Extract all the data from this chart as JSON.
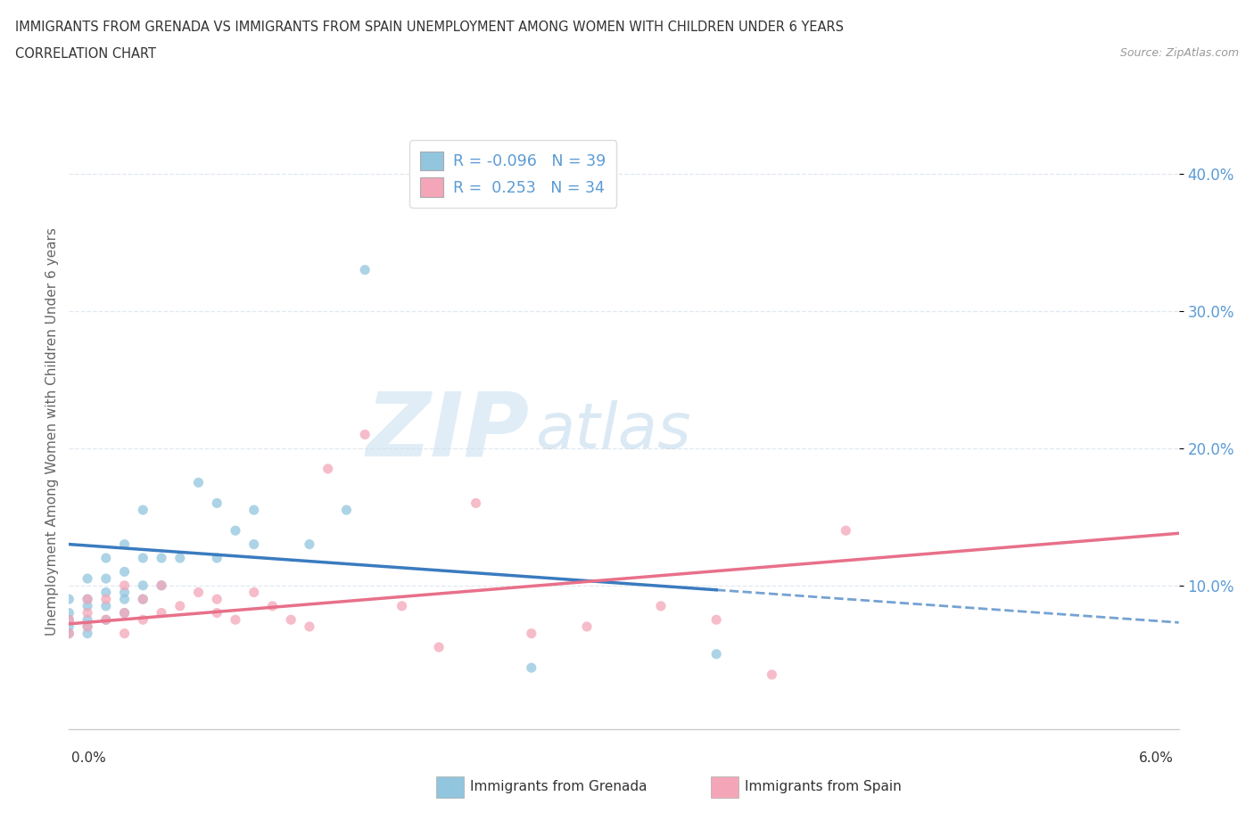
{
  "title_line1": "IMMIGRANTS FROM GRENADA VS IMMIGRANTS FROM SPAIN UNEMPLOYMENT AMONG WOMEN WITH CHILDREN UNDER 6 YEARS",
  "title_line2": "CORRELATION CHART",
  "source": "Source: ZipAtlas.com",
  "ylabel": "Unemployment Among Women with Children Under 6 years",
  "xlim": [
    0.0,
    0.06
  ],
  "ylim": [
    -0.005,
    0.43
  ],
  "grenada_R": -0.096,
  "grenada_N": 39,
  "spain_R": 0.253,
  "spain_N": 34,
  "grenada_color": "#92c5de",
  "spain_color": "#f4a6b8",
  "grenada_line_color": "#3a7bbf",
  "spain_line_color": "#e8708a",
  "watermark_zip": "ZIP",
  "watermark_atlas": "atlas",
  "grenada_x": [
    0.0,
    0.0,
    0.0,
    0.0,
    0.0,
    0.001,
    0.001,
    0.001,
    0.001,
    0.001,
    0.001,
    0.002,
    0.002,
    0.002,
    0.002,
    0.002,
    0.003,
    0.003,
    0.003,
    0.003,
    0.003,
    0.004,
    0.004,
    0.004,
    0.004,
    0.005,
    0.005,
    0.006,
    0.007,
    0.008,
    0.008,
    0.009,
    0.01,
    0.01,
    0.013,
    0.015,
    0.016,
    0.025,
    0.035
  ],
  "grenada_y": [
    0.065,
    0.07,
    0.075,
    0.08,
    0.09,
    0.065,
    0.07,
    0.075,
    0.085,
    0.09,
    0.105,
    0.075,
    0.085,
    0.095,
    0.105,
    0.12,
    0.08,
    0.09,
    0.095,
    0.11,
    0.13,
    0.09,
    0.1,
    0.12,
    0.155,
    0.1,
    0.12,
    0.12,
    0.175,
    0.12,
    0.16,
    0.14,
    0.13,
    0.155,
    0.13,
    0.155,
    0.33,
    0.04,
    0.05
  ],
  "spain_x": [
    0.0,
    0.0,
    0.001,
    0.001,
    0.001,
    0.002,
    0.002,
    0.003,
    0.003,
    0.003,
    0.004,
    0.004,
    0.005,
    0.005,
    0.006,
    0.007,
    0.008,
    0.008,
    0.009,
    0.01,
    0.011,
    0.012,
    0.013,
    0.014,
    0.016,
    0.018,
    0.02,
    0.022,
    0.025,
    0.028,
    0.032,
    0.035,
    0.038,
    0.042
  ],
  "spain_y": [
    0.065,
    0.075,
    0.07,
    0.08,
    0.09,
    0.075,
    0.09,
    0.065,
    0.08,
    0.1,
    0.075,
    0.09,
    0.08,
    0.1,
    0.085,
    0.095,
    0.08,
    0.09,
    0.075,
    0.095,
    0.085,
    0.075,
    0.07,
    0.185,
    0.21,
    0.085,
    0.055,
    0.16,
    0.065,
    0.07,
    0.085,
    0.075,
    0.035,
    0.14
  ],
  "ytick_positions": [
    0.1,
    0.2,
    0.3,
    0.4
  ],
  "ytick_labels": [
    "10.0%",
    "20.0%",
    "30.0%",
    "40.0%"
  ],
  "background_color": "#ffffff",
  "grid_color": "#e0e8f0"
}
